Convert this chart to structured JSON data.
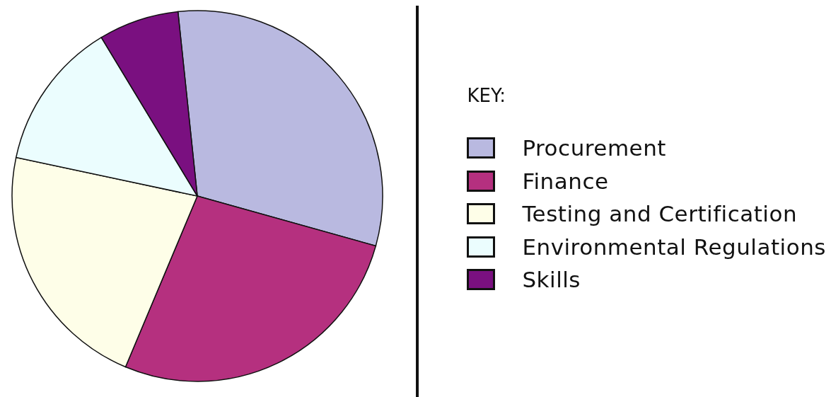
{
  "chart_data": {
    "type": "pie",
    "legend_title": "KEY:",
    "legend": "right",
    "categories": [
      "Procurement",
      "Finance",
      "Testing and Certification",
      "Environmental Regulations",
      "Skills"
    ],
    "values": [
      31,
      27,
      22,
      13,
      7
    ],
    "colors": [
      "#b9b9e0",
      "#b5307f",
      "#fefee8",
      "#ebfdfe",
      "#7a1080"
    ]
  }
}
